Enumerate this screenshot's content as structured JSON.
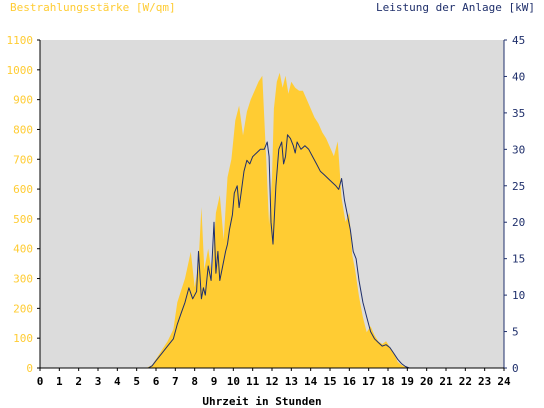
{
  "chart_data": {
    "type": "area",
    "left_axis_title": "Bestrahlungsstärke [W/qm]",
    "right_axis_title": "Leistung der Anlage [kW]",
    "xlabel": "Uhrzeit in Stunden",
    "xlim": [
      0,
      24
    ],
    "xticks": [
      "0",
      "1",
      "2",
      "3",
      "4",
      "5",
      "6",
      "7",
      "8",
      "9",
      "10",
      "11",
      "12",
      "13",
      "14",
      "15",
      "16",
      "17",
      "18",
      "19",
      "20",
      "21",
      "22",
      "23",
      "24"
    ],
    "ylim_left": [
      0,
      1100
    ],
    "yticks_left": [
      "0",
      "100",
      "200",
      "300",
      "400",
      "500",
      "600",
      "700",
      "800",
      "900",
      "1000",
      "1100"
    ],
    "ylim_right": [
      0,
      45
    ],
    "yticks_right": [
      "0",
      "5",
      "10",
      "15",
      "20",
      "25",
      "30",
      "35",
      "40",
      "45"
    ],
    "grid": false,
    "colors": {
      "irradiance_fill": "#ffcc33",
      "power_line": "#1f2f6b",
      "left_axis_text": "#ffcc33",
      "right_axis_text": "#1f2f6b",
      "plot_background": "#dcdcdc",
      "axis": "#000000"
    },
    "series": [
      {
        "axis": "left",
        "style": "area",
        "x": [
          0,
          5.5,
          5.8,
          6.0,
          6.3,
          6.6,
          6.9,
          7.1,
          7.3,
          7.5,
          7.8,
          8.0,
          8.2,
          8.35,
          8.5,
          8.7,
          8.9,
          9.1,
          9.3,
          9.5,
          9.7,
          9.9,
          10.1,
          10.3,
          10.5,
          10.7,
          10.9,
          11.1,
          11.3,
          11.5,
          11.7,
          11.85,
          12.0,
          12.1,
          12.25,
          12.4,
          12.55,
          12.7,
          12.85,
          13.0,
          13.2,
          13.4,
          13.6,
          13.8,
          14.0,
          14.2,
          14.4,
          14.6,
          14.8,
          15.0,
          15.2,
          15.4,
          15.6,
          15.8,
          16.0,
          16.15,
          16.3,
          16.5,
          16.7,
          16.9,
          17.1,
          17.3,
          17.5,
          17.7,
          17.9,
          18.1,
          18.3,
          18.5,
          18.7,
          19.0,
          19.2,
          24
        ],
        "y": [
          0,
          0,
          10,
          30,
          60,
          90,
          130,
          220,
          260,
          300,
          390,
          270,
          350,
          540,
          330,
          400,
          310,
          520,
          580,
          430,
          640,
          700,
          830,
          880,
          780,
          860,
          900,
          930,
          960,
          980,
          700,
          480,
          640,
          870,
          960,
          990,
          940,
          980,
          920,
          960,
          940,
          930,
          930,
          900,
          870,
          840,
          820,
          790,
          770,
          740,
          710,
          760,
          570,
          490,
          520,
          380,
          330,
          240,
          170,
          120,
          140,
          110,
          90,
          80,
          90,
          70,
          50,
          20,
          10,
          0,
          0,
          0
        ]
      },
      {
        "axis": "right",
        "style": "line",
        "x": [
          0,
          5.6,
          5.8,
          6.0,
          6.3,
          6.6,
          6.9,
          7.1,
          7.3,
          7.5,
          7.7,
          7.9,
          8.1,
          8.2,
          8.35,
          8.45,
          8.55,
          8.7,
          8.85,
          9.0,
          9.1,
          9.2,
          9.3,
          9.45,
          9.6,
          9.7,
          9.8,
          9.95,
          10.05,
          10.2,
          10.3,
          10.4,
          10.55,
          10.7,
          10.85,
          11.0,
          11.2,
          11.4,
          11.6,
          11.75,
          11.85,
          11.95,
          12.05,
          12.2,
          12.35,
          12.5,
          12.6,
          12.7,
          12.8,
          12.95,
          13.1,
          13.2,
          13.3,
          13.5,
          13.7,
          13.9,
          14.1,
          14.3,
          14.5,
          14.7,
          14.9,
          15.1,
          15.3,
          15.45,
          15.6,
          15.75,
          15.9,
          16.05,
          16.2,
          16.35,
          16.5,
          16.7,
          16.9,
          17.1,
          17.3,
          17.5,
          17.7,
          17.9,
          18.1,
          18.3,
          18.5,
          18.7,
          18.9,
          19.1,
          24
        ],
        "y": [
          0,
          0,
          0.3,
          1.0,
          2.0,
          3.0,
          4.0,
          6.0,
          7.5,
          9.0,
          11.0,
          9.5,
          10.5,
          16.0,
          9.5,
          11.0,
          10.0,
          14.0,
          12.0,
          20.0,
          13.0,
          16.0,
          12.0,
          14.0,
          16.0,
          17.0,
          19.0,
          21.0,
          24.0,
          25.0,
          22.0,
          24.0,
          27.0,
          28.5,
          28.0,
          29.0,
          29.5,
          30.0,
          30.0,
          31.0,
          29.0,
          20.0,
          17.0,
          25.0,
          30.0,
          31.0,
          28.0,
          29.0,
          32.0,
          31.5,
          30.5,
          29.5,
          31.0,
          30.0,
          30.5,
          30.0,
          29.0,
          28.0,
          27.0,
          26.5,
          26.0,
          25.5,
          25.0,
          24.5,
          26.0,
          23.0,
          21.0,
          19.0,
          16.0,
          15.0,
          12.0,
          9.0,
          7.0,
          5.0,
          4.0,
          3.5,
          3.0,
          3.2,
          2.8,
          2.0,
          1.2,
          0.6,
          0.2,
          0,
          0
        ]
      }
    ]
  }
}
